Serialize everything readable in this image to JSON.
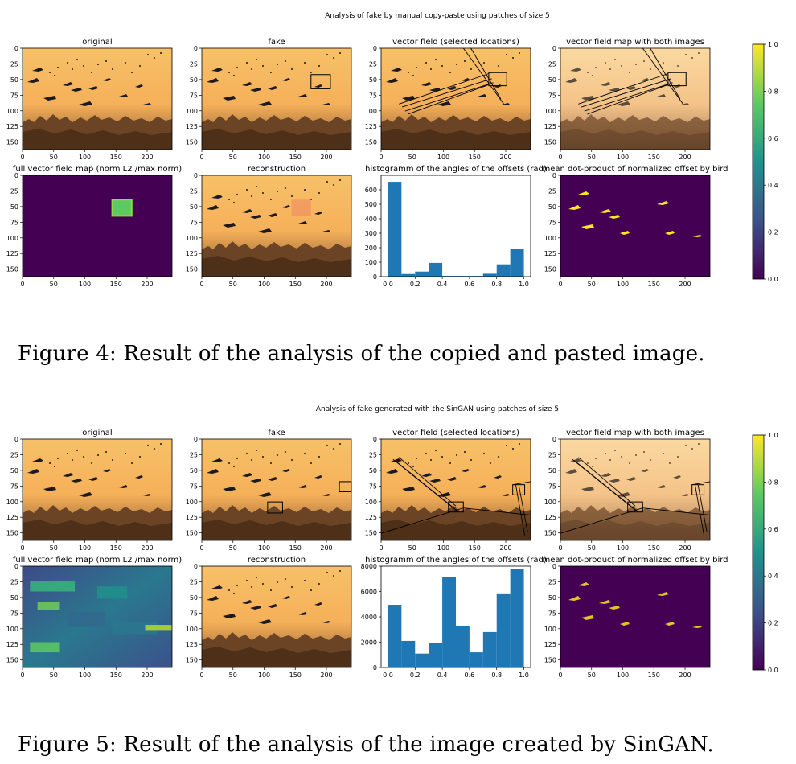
{
  "figures": [
    {
      "suptitle": "Analysis of fake by manual copy-paste using patches of size 5",
      "caption": "Figure 4: Result of the analysis of the copied and pasted image.",
      "panel_titles": [
        "original",
        "fake",
        "vector field (selected locations)",
        "vector field map with both images",
        "full vector field map (norm L2 /max norm)",
        "reconstruction",
        "histogramm of the angles of the offsets (rad)",
        "mean dot-product of normalized offset by bird"
      ],
      "colorbar_ticks": [
        "1.0",
        "0.8",
        "0.6",
        "0.4",
        "0.2",
        "0.0"
      ]
    },
    {
      "suptitle": "Analysis of fake generated with the SinGAN using patches of size 5",
      "caption": "Figure 5: Result of the analysis of the image created by SinGAN.",
      "panel_titles": [
        "original",
        "fake",
        "vector field (selected locations)",
        "vector field map with both images",
        "full vector field map (norm L2 /max norm)",
        "reconstruction",
        "histogramm of the angles of the offsets (rad)",
        "mean dot-product of normalized offset by bird"
      ],
      "colorbar_ticks": [
        "1.0",
        "0.8",
        "0.6",
        "0.4",
        "0.2",
        "0.0"
      ]
    }
  ],
  "image_axes": {
    "x_ticks": [
      "0",
      "50",
      "100",
      "150",
      "200"
    ],
    "y_ticks": [
      "0",
      "25",
      "50",
      "75",
      "100",
      "125",
      "150"
    ]
  },
  "chart_data": [
    {
      "type": "bar",
      "title": "histogramm of the angles of the offsets (rad)",
      "x": [
        0.05,
        0.15,
        0.25,
        0.35,
        0.45,
        0.55,
        0.65,
        0.75,
        0.85,
        0.95
      ],
      "values": [
        655,
        18,
        35,
        95,
        5,
        5,
        5,
        20,
        85,
        190
      ],
      "xlim": [
        -0.05,
        1.05
      ],
      "ylim": [
        0,
        700
      ],
      "xticks": [
        "0.0",
        "0.2",
        "0.4",
        "0.6",
        "0.8",
        "1.0"
      ],
      "yticks": [
        "0",
        "100",
        "200",
        "300",
        "400",
        "500",
        "600"
      ],
      "color": "#1f77b4"
    },
    {
      "type": "bar",
      "title": "histogramm of the angles of the offsets (rad)",
      "x": [
        0.05,
        0.15,
        0.25,
        0.35,
        0.45,
        0.55,
        0.65,
        0.75,
        0.85,
        0.95
      ],
      "values": [
        4950,
        2100,
        1100,
        1950,
        7150,
        3300,
        1200,
        2800,
        5850,
        7750
      ],
      "xlim": [
        -0.05,
        1.05
      ],
      "ylim": [
        0,
        8000
      ],
      "xticks": [
        "0.0",
        "0.2",
        "0.4",
        "0.6",
        "0.8",
        "1.0"
      ],
      "yticks": [
        "0",
        "2000",
        "4000",
        "6000",
        "8000"
      ],
      "color": "#1f77b4"
    }
  ]
}
